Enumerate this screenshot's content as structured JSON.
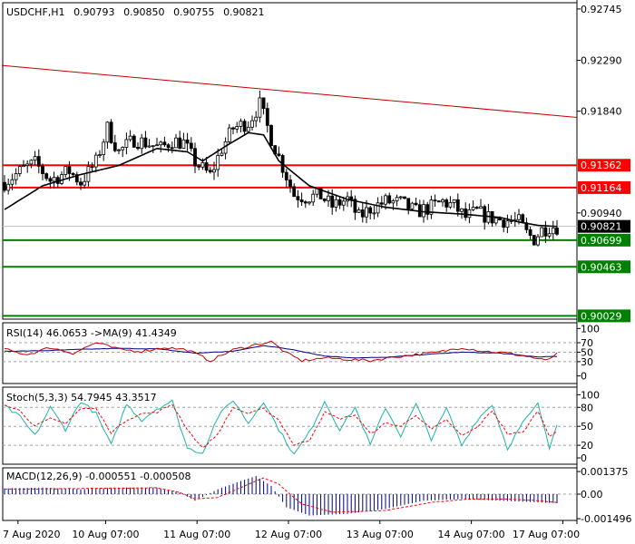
{
  "chart_data": [
    {
      "type": "candlestick",
      "panel": "main",
      "header": {
        "symbol": "USDCHF,H1",
        "open": "0.90793",
        "high": "0.90850",
        "low": "0.90755",
        "close": "0.90821"
      },
      "ylim": [
        0.9,
        0.928
      ],
      "y_ticks": [
        {
          "value": 0.92745,
          "label": "0.92745"
        },
        {
          "value": 0.9229,
          "label": "0.92290"
        },
        {
          "value": 0.9184,
          "label": "0.91840"
        },
        {
          "value": 0.9094,
          "label": "0.90940"
        }
      ],
      "levels": [
        {
          "value": 0.91362,
          "label": "0.91362",
          "color": "#ff0000"
        },
        {
          "value": 0.91164,
          "label": "0.91164",
          "color": "#ff0000"
        },
        {
          "value": 0.90699,
          "label": "0.90699",
          "color": "#008000"
        },
        {
          "value": 0.90463,
          "label": "0.90463",
          "color": "#008000"
        },
        {
          "value": 0.90029,
          "label": "0.90029",
          "color": "#008000"
        }
      ],
      "current_price": {
        "value": 0.90821,
        "label": "0.90821"
      },
      "trendline": {
        "x": [
          0,
          145
        ],
        "y": [
          0.92245,
          0.91785
        ],
        "color": "#c00000"
      },
      "close_series_anchors": {
        "x": [
          0,
          5,
          8,
          12,
          17,
          20,
          24,
          27,
          30,
          34,
          38,
          41,
          44,
          47,
          50,
          54,
          57,
          60,
          64,
          67,
          70,
          73,
          76,
          79,
          83,
          86,
          90,
          93,
          96,
          100,
          104,
          108,
          112,
          115,
          118,
          121,
          124,
          127,
          130,
          133,
          135,
          137,
          139,
          141,
          143
        ],
        "y": [
          0.9121,
          0.9133,
          0.9138,
          0.9123,
          0.9131,
          0.9121,
          0.9139,
          0.9169,
          0.9148,
          0.9159,
          0.9155,
          0.9151,
          0.9158,
          0.9156,
          0.9139,
          0.9127,
          0.9151,
          0.9169,
          0.9174,
          0.919,
          0.916,
          0.9135,
          0.911,
          0.9108,
          0.9109,
          0.91,
          0.9106,
          0.909,
          0.9098,
          0.9104,
          0.9103,
          0.9095,
          0.9099,
          0.9104,
          0.91,
          0.909,
          0.9095,
          0.909,
          0.9088,
          0.9087,
          0.9086,
          0.9076,
          0.9071,
          0.9079,
          0.9082
        ]
      },
      "ma_line_anchors": {
        "x": [
          0,
          10,
          20,
          30,
          40,
          48,
          52,
          58,
          64,
          68,
          72,
          80,
          90,
          100,
          110,
          120,
          130,
          135,
          140,
          145
        ],
        "y": [
          0.9097,
          0.9118,
          0.9128,
          0.9136,
          0.9151,
          0.9148,
          0.914,
          0.9153,
          0.9165,
          0.9163,
          0.914,
          0.9118,
          0.9106,
          0.9099,
          0.9095,
          0.9093,
          0.909,
          0.9086,
          0.9083,
          0.9082
        ]
      }
    },
    {
      "type": "line",
      "panel": "rsi",
      "title": "RSI(14) 46.0653  ->MA(9) 41.4349",
      "ylim": [
        0,
        100
      ],
      "y_ticks": [
        {
          "value": 100,
          "label": "100"
        },
        {
          "value": 70,
          "label": "70"
        },
        {
          "value": 50,
          "label": "50"
        },
        {
          "value": 30,
          "label": "30"
        },
        {
          "value": 0,
          "label": "0"
        }
      ],
      "rsi_anchors": {
        "x": [
          0,
          6,
          12,
          18,
          24,
          30,
          36,
          42,
          48,
          54,
          60,
          66,
          70,
          74,
          78,
          84,
          90,
          96,
          102,
          108,
          114,
          120,
          126,
          132,
          138,
          142,
          145
        ],
        "y": [
          56,
          45,
          60,
          48,
          70,
          56,
          52,
          60,
          55,
          32,
          55,
          66,
          72,
          48,
          32,
          38,
          35,
          32,
          40,
          45,
          50,
          60,
          52,
          48,
          40,
          32,
          46
        ]
      },
      "ma_anchors": {
        "x": [
          0,
          10,
          20,
          30,
          40,
          50,
          60,
          68,
          76,
          84,
          92,
          100,
          110,
          120,
          130,
          140,
          145
        ],
        "y": [
          52,
          53,
          56,
          58,
          57,
          48,
          52,
          64,
          55,
          42,
          38,
          39,
          45,
          50,
          48,
          40,
          41
        ]
      }
    },
    {
      "type": "line",
      "panel": "stoch",
      "title": "Stoch(5,3,3) 54.7945 43.3517",
      "ylim": [
        0,
        100
      ],
      "y_ticks": [
        {
          "value": 100,
          "label": "100"
        },
        {
          "value": 80,
          "label": "80"
        },
        {
          "value": 50,
          "label": "50"
        },
        {
          "value": 20,
          "label": "20"
        },
        {
          "value": 0,
          "label": "0"
        }
      ],
      "k_anchors": {
        "x": [
          0,
          4,
          8,
          12,
          16,
          20,
          24,
          28,
          32,
          36,
          40,
          44,
          48,
          52,
          56,
          60,
          64,
          68,
          72,
          76,
          80,
          84,
          88,
          92,
          96,
          100,
          104,
          108,
          112,
          116,
          120,
          124,
          128,
          132,
          136,
          140,
          143,
          145
        ],
        "y": [
          82,
          65,
          35,
          80,
          45,
          90,
          70,
          20,
          85,
          60,
          78,
          90,
          15,
          8,
          65,
          92,
          55,
          90,
          45,
          5,
          40,
          90,
          45,
          80,
          20,
          80,
          35,
          85,
          30,
          78,
          20,
          60,
          85,
          15,
          55,
          85,
          15,
          55
        ]
      },
      "d_anchors": {
        "x": [
          0,
          4,
          8,
          12,
          16,
          20,
          24,
          28,
          32,
          36,
          40,
          44,
          48,
          52,
          56,
          60,
          64,
          68,
          72,
          76,
          80,
          84,
          88,
          92,
          96,
          100,
          104,
          108,
          112,
          116,
          120,
          124,
          128,
          132,
          136,
          140,
          143,
          145
        ],
        "y": [
          85,
          75,
          50,
          62,
          55,
          78,
          78,
          40,
          60,
          70,
          72,
          85,
          45,
          15,
          38,
          80,
          70,
          78,
          60,
          20,
          28,
          72,
          62,
          68,
          38,
          55,
          50,
          68,
          45,
          60,
          35,
          48,
          75,
          38,
          40,
          75,
          35,
          43
        ]
      }
    },
    {
      "type": "bar",
      "panel": "macd",
      "title": "MACD(12,26,9) -0.000551 -0.000508",
      "ylim": [
        -0.0016,
        0.0016
      ],
      "y_ticks": [
        {
          "value": 0.001375,
          "label": "0.001375"
        },
        {
          "value": 0.0,
          "label": "0.00"
        },
        {
          "value": -0.001496,
          "label": "-0.001496"
        }
      ],
      "hist_anchors": {
        "x": [
          0,
          10,
          20,
          30,
          40,
          46,
          50,
          56,
          62,
          66,
          70,
          74,
          80,
          90,
          100,
          110,
          120,
          130,
          140,
          145
        ],
        "y": [
          0.00035,
          0.0004,
          0.0003,
          0.0004,
          0.0004,
          0.0001,
          -0.0004,
          0.0003,
          0.0008,
          0.0011,
          0.0005,
          -0.0008,
          -0.0013,
          -0.0012,
          -0.0009,
          -0.0004,
          -0.0003,
          -0.0004,
          -0.0005,
          -0.00055
        ]
      },
      "signal_anchors": {
        "x": [
          0,
          20,
          40,
          46,
          50,
          56,
          62,
          68,
          72,
          78,
          86,
          100,
          112,
          122,
          132,
          140,
          145
        ],
        "y": [
          0.0003,
          0.00034,
          0.00038,
          0.0001,
          -0.0003,
          -0.0002,
          0.0004,
          0.001,
          0.0006,
          -0.0006,
          -0.0011,
          -0.001,
          -0.0005,
          -0.0003,
          -0.0003,
          -0.0004,
          -0.0005
        ]
      }
    }
  ],
  "x_axis": {
    "bar_count": 146,
    "ticks": [
      {
        "bar": 4,
        "label": "7 Aug 2020"
      },
      {
        "bar": 27,
        "label": "10 Aug 07:00"
      },
      {
        "bar": 51,
        "label": "11 Aug 07:00"
      },
      {
        "bar": 75,
        "label": "12 Aug 07:00"
      },
      {
        "bar": 99,
        "label": "13 Aug 07:00"
      },
      {
        "bar": 123,
        "label": "14 Aug 07:00"
      },
      {
        "bar": 147,
        "label": "17 Aug 07:00"
      }
    ]
  },
  "colors": {
    "candle": "#000000",
    "rsi_line": "#c00000",
    "rsi_ma": "#000080",
    "stoch_k": "#20b2aa",
    "stoch_d": "#ff0000",
    "macd_hist": "#000080",
    "macd_signal": "#ff0000",
    "main_ma": "#000000"
  }
}
